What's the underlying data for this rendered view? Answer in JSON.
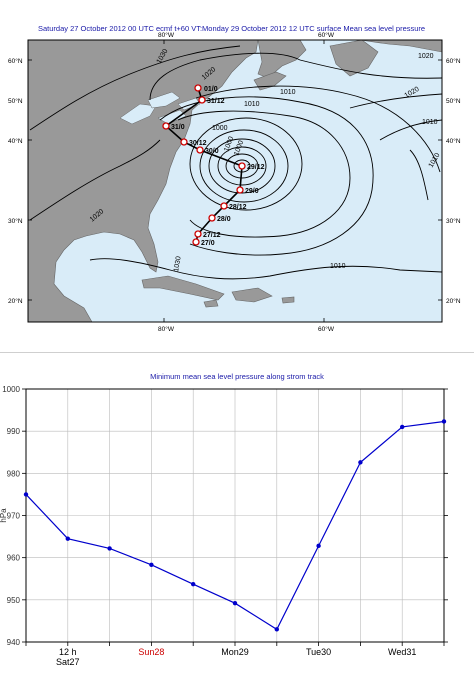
{
  "map": {
    "title": "Saturday 27 October 2012 00 UTC ecmf t+60 VT:Monday 29 October 2012 12 UTC surface  Mean sea level pressure",
    "lon_labels": [
      "80°W",
      "60°W"
    ],
    "lat_labels": [
      "60°N",
      "50°N",
      "40°N",
      "30°N",
      "20°N"
    ],
    "isobar_labels": [
      "1030",
      "1020",
      "1010",
      "1000",
      "1000",
      "1010",
      "1020",
      "1010",
      "1020",
      "1010",
      "1000",
      "1010",
      "1020",
      "1030"
    ],
    "track_labels": [
      "01/0",
      "31/12",
      "31/0",
      "30/12",
      "30/0",
      "29/12",
      "29/0",
      "28/12",
      "28/0",
      "27/12",
      "27/0"
    ],
    "colors": {
      "ocean": "#d9ecf8",
      "land": "#999999",
      "isobar": "#000000",
      "track": "#cc0000"
    }
  },
  "chart_data": {
    "type": "line",
    "title": "Minimum mean sea level pressure along strom track",
    "ylabel": "hPa",
    "ylim": [
      940,
      1000
    ],
    "yticks": [
      940,
      950,
      960,
      970,
      980,
      990,
      1000
    ],
    "xlabels": [
      {
        "label": "12 h",
        "x": 1,
        "color": "#000000"
      },
      {
        "label": "Sat27",
        "x": 1,
        "color": "#000000"
      },
      {
        "label": "Sun28",
        "x": 3,
        "color": "#cc0000"
      },
      {
        "label": "Mon29",
        "x": 5,
        "color": "#000000"
      },
      {
        "label": "Tue30",
        "x": 7,
        "color": "#000000"
      },
      {
        "label": "Wed31",
        "x": 9,
        "color": "#000000"
      }
    ],
    "x": [
      0,
      1,
      2,
      3,
      4,
      5,
      6,
      7,
      8,
      9,
      10
    ],
    "values": [
      975,
      964.5,
      962.2,
      958.3,
      953.7,
      949.2,
      943,
      962.8,
      982.6,
      991,
      992.3
    ],
    "grid": true,
    "color": "#0000cc"
  }
}
